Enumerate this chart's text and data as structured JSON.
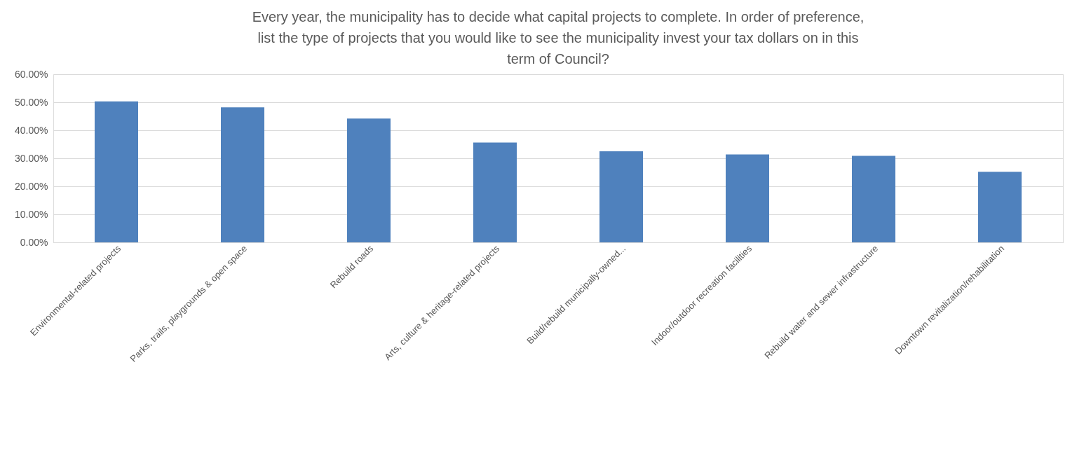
{
  "chart_data": {
    "type": "bar",
    "title": "Every year, the municipality has to decide what capital projects to complete. In order of preference, list the type of projects that you would like to see the municipality invest your tax dollars on in this term of Council?",
    "categories": [
      "Environmental-related projects",
      "Parks, trails, playgrounds & open space",
      "Rebuild roads",
      "Arts, culture & heritage-related projects",
      "Build/rebuild municipally-owned...",
      "Indoor/outdoor recreation facilities",
      "Rebuild water and sewer infrastructure",
      "Downtown revitalization/rehabilitation"
    ],
    "values": [
      50.3,
      48.2,
      44.2,
      35.6,
      32.5,
      31.4,
      30.9,
      25.2
    ],
    "color": "#4f81bd",
    "ylim": [
      0,
      60
    ],
    "yticks": [
      {
        "value": 0,
        "label": "0.00%"
      },
      {
        "value": 10,
        "label": "10.00%"
      },
      {
        "value": 20,
        "label": "20.00%"
      },
      {
        "value": 30,
        "label": "30.00%"
      },
      {
        "value": 40,
        "label": "40.00%"
      },
      {
        "value": 50,
        "label": "50.00%"
      },
      {
        "value": 60,
        "label": "60.00%"
      }
    ],
    "grid": "y"
  }
}
